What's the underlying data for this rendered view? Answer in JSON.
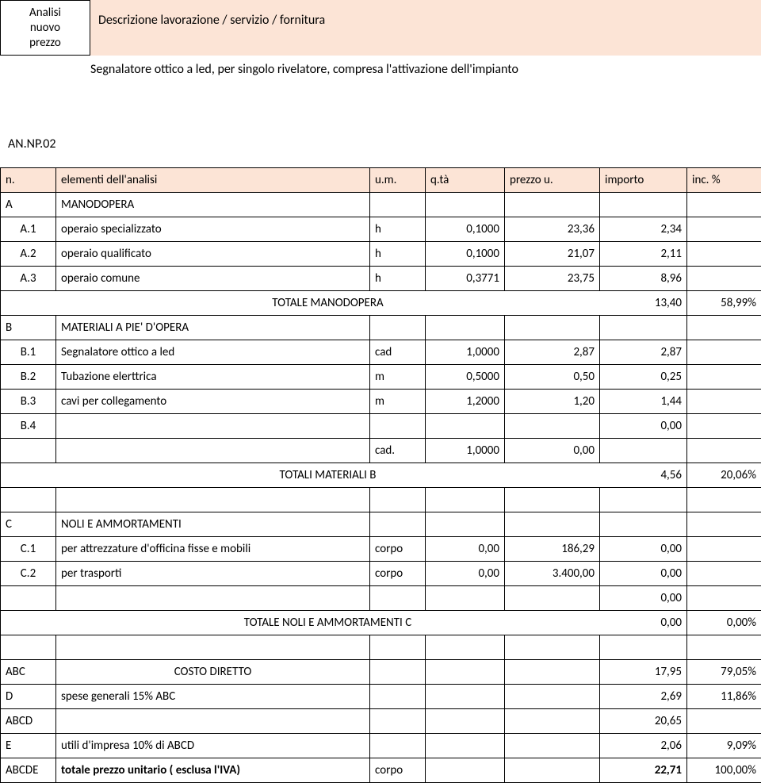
{
  "header": {
    "title_l1": "Analisi",
    "title_l2": "nuovo",
    "title_l3": "prezzo",
    "desc_label": "Descrizione  lavorazione / servizio / fornitura",
    "item_desc": "Segnalatore ottico a led, per singolo rivelatore, compresa l'attivazione dell'impianto",
    "code": "AN.NP.02"
  },
  "col_headers": {
    "n": "n.",
    "desc": "elementi dell'analisi",
    "um": "u.m.",
    "qta": "q.tà",
    "prezzo": "prezzo u.",
    "importo": "importo",
    "inc": "inc. %"
  },
  "sectionA": {
    "code": "A",
    "label": "MANODOPERA",
    "rows": [
      {
        "n": "A.1",
        "d": "operaio specializzato",
        "um": "h",
        "q": "0,1000",
        "p": "23,36",
        "i": "2,34",
        "pc": ""
      },
      {
        "n": "A.2",
        "d": "operaio qualificato",
        "um": "h",
        "q": "0,1000",
        "p": "21,07",
        "i": "2,11",
        "pc": ""
      },
      {
        "n": "A.3",
        "d": "operaio comune",
        "um": "h",
        "q": "0,3771",
        "p": "23,75",
        "i": "8,96",
        "pc": ""
      }
    ],
    "total_label": "TOTALE MANODOPERA",
    "total_i": "13,40",
    "total_pc": "58,99%"
  },
  "sectionB": {
    "code": "B",
    "label": "MATERIALI A PIE' D'OPERA",
    "rows": [
      {
        "n": "B.1",
        "d": "Segnalatore ottico a led",
        "um": "cad",
        "q": "1,0000",
        "p": "2,87",
        "i": "2,87",
        "pc": ""
      },
      {
        "n": "B.2",
        "d": "Tubazione elerttrica",
        "um": "m",
        "q": "0,5000",
        "p": "0,50",
        "i": "0,25",
        "pc": ""
      },
      {
        "n": "B.3",
        "d": "cavi per collegamento",
        "um": "m",
        "q": "1,2000",
        "p": "1,20",
        "i": "1,44",
        "pc": ""
      },
      {
        "n": "B.4",
        "d": "",
        "um": "",
        "q": "",
        "p": "",
        "i": "0,00",
        "pc": ""
      }
    ],
    "extra": {
      "um": "cad.",
      "q": "1,0000",
      "p": "0,00"
    },
    "total_label": "TOTALI MATERIALI   B",
    "total_i": "4,56",
    "total_pc": "20,06%"
  },
  "sectionC": {
    "code": "C",
    "label": "NOLI E AMMORTAMENTI",
    "rows": [
      {
        "n": "C.1",
        "d": "per attrezzature  d'officina fisse e mobili",
        "um": "corpo",
        "q": "0,00",
        "p": "186,29",
        "i": "0,00",
        "pc": ""
      },
      {
        "n": "C.2",
        "d": "per trasporti",
        "um": "corpo",
        "q": "0,00",
        "p": "3.400,00",
        "i": "0,00",
        "pc": ""
      }
    ],
    "blank_i": "0,00",
    "total_label": "TOTALE NOLI E AMMORTAMENTI   C",
    "total_i": "0,00",
    "total_pc": "0,00%"
  },
  "totals": {
    "abc_code": "ABC",
    "abc_label": "COSTO DIRETTO",
    "abc_i": "17,95",
    "abc_pc": "79,05%",
    "d_code": "D",
    "d_label": "spese generali   15%   ABC",
    "d_i": "2,69",
    "d_pc": "11,86%",
    "abcd_code": "ABCD",
    "abcd_i": "20,65",
    "e_code": "E",
    "e_label": "utili d'impresa 10%  di ABCD",
    "e_i": "2,06",
    "e_pc": "9,09%",
    "abcde_code": "ABCDE",
    "abcde_label": "totale prezzo unitario ( esclusa l'IVA)",
    "abcde_um": "corpo",
    "abcde_i": "22,71",
    "abcde_pc": "100,00%"
  },
  "colors": {
    "border": "#000000",
    "header_bg": "#fce4d6",
    "page_bg": "#ffffff"
  },
  "typography": {
    "font": "Calibri",
    "size_pt": 11
  }
}
